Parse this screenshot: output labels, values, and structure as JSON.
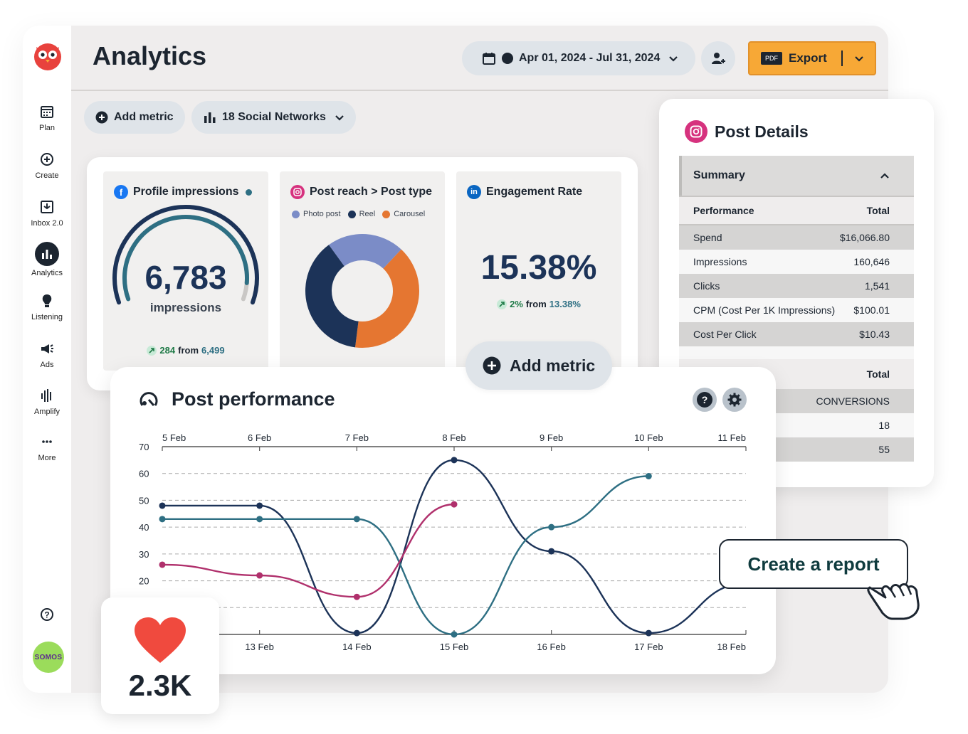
{
  "app": {
    "title": "Analytics"
  },
  "sidebar": {
    "items": [
      {
        "label": "Plan",
        "icon": "calendar-icon"
      },
      {
        "label": "Create",
        "icon": "plus-circle-icon"
      },
      {
        "label": "Inbox 2.0",
        "icon": "inbox-icon"
      },
      {
        "label": "Analytics",
        "icon": "bar-chart-icon",
        "active": true
      },
      {
        "label": "Listening",
        "icon": "lightbulb-icon"
      },
      {
        "label": "Ads",
        "icon": "megaphone-icon"
      },
      {
        "label": "Amplify",
        "icon": "amplify-icon"
      },
      {
        "label": "More",
        "icon": "more-icon"
      }
    ],
    "avatar_text": "SOMOS"
  },
  "header": {
    "date_range": "Apr 01, 2024 - Jul 31, 2024",
    "export_badge": "PDF",
    "export_label": "Export"
  },
  "toolbar": {
    "add_metric": "Add metric",
    "networks": "18 Social Networks"
  },
  "cards": {
    "impressions": {
      "title": "Profile impressions",
      "value": "6,783",
      "unit": "impressions",
      "delta": "284",
      "from_word": "from",
      "from_value": "6,499",
      "gauge_fraction": 0.93
    },
    "reach": {
      "title": "Post reach > Post type",
      "legend": [
        {
          "label": "Photo post",
          "color": "#7b8cc7"
        },
        {
          "label": "Reel",
          "color": "#1c3358"
        },
        {
          "label": "Carousel",
          "color": "#e57631"
        }
      ],
      "slices": [
        {
          "label": "Photo post",
          "value": 22,
          "color": "#7b8cc7"
        },
        {
          "label": "Carousel",
          "value": 40,
          "color": "#e57631"
        },
        {
          "label": "Reel",
          "value": 38,
          "color": "#1c3358"
        }
      ]
    },
    "engagement": {
      "title": "Engagement Rate",
      "value": "15.38%",
      "delta": "2%",
      "from_word": "from",
      "from_value": "13.38%"
    }
  },
  "float_add_metric": "Add metric",
  "details": {
    "title": "Post Details",
    "summary": "Summary",
    "head": {
      "left": "Performance",
      "right": "Total"
    },
    "rows": [
      {
        "label": "Spend",
        "value": "$16,066.80"
      },
      {
        "label": "Impressions",
        "value": "160,646"
      },
      {
        "label": "Clicks",
        "value": "1,541"
      },
      {
        "label": "CPM (Cost Per 1K Impressions)",
        "value": "$100.01"
      },
      {
        "label": "Cost Per Click",
        "value": "$10.43"
      }
    ],
    "lower_head_right": "Total",
    "lower_rows": [
      "CONVERSIONS",
      "18",
      "55"
    ]
  },
  "performance": {
    "title": "Post performance",
    "help": "?"
  },
  "chart_data": {
    "type": "line",
    "x_top": [
      "5 Feb",
      "6 Feb",
      "7 Feb",
      "8 Feb",
      "9 Feb",
      "10 Feb",
      "11 Feb"
    ],
    "x_bottom": [
      "13 Feb",
      "14 Feb",
      "15 Feb",
      "16 Feb",
      "17 Feb",
      "18 Feb"
    ],
    "y_ticks": [
      70,
      60,
      50,
      40,
      30,
      20
    ],
    "ylim": [
      0,
      70
    ],
    "grid": true,
    "series": [
      {
        "color": "#1c3358",
        "points": [
          [
            0,
            48
          ],
          [
            1,
            48
          ],
          [
            2,
            0.5
          ],
          [
            3,
            65
          ],
          [
            4,
            31
          ],
          [
            5,
            0.5
          ],
          [
            6,
            19
          ]
        ]
      },
      {
        "color": "#2e6f83",
        "points": [
          [
            0,
            43
          ],
          [
            1,
            43
          ],
          [
            2,
            43
          ],
          [
            3,
            0
          ],
          [
            4,
            40
          ],
          [
            5,
            59
          ]
        ]
      },
      {
        "color": "#b0306c",
        "points": [
          [
            0,
            26
          ],
          [
            1,
            22
          ],
          [
            2,
            14
          ],
          [
            3,
            48.5
          ]
        ]
      }
    ]
  },
  "likes": {
    "value": "2.3K"
  },
  "report": {
    "label": "Create a report"
  }
}
